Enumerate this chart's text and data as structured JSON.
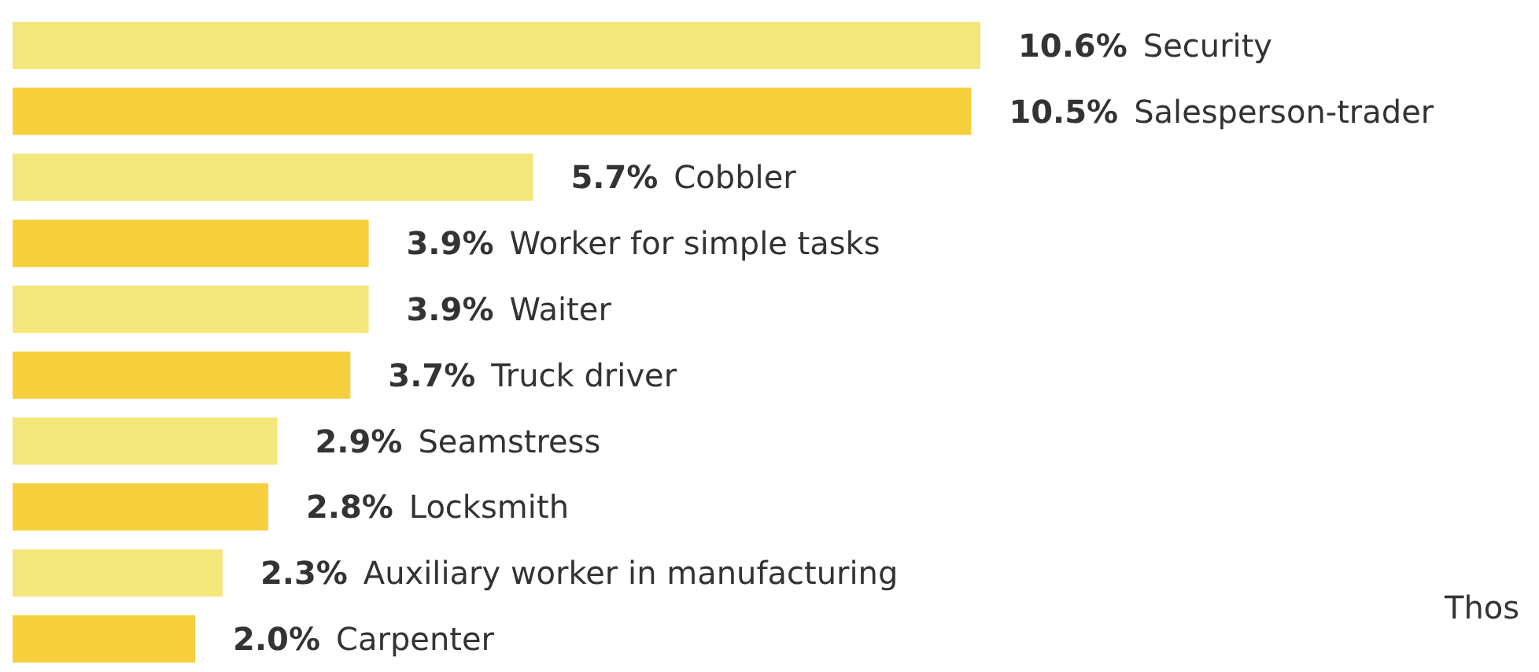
{
  "chart_data": {
    "type": "bar",
    "orientation": "horizontal",
    "categories": [
      "Security",
      "Salesperson-trader",
      "Cobbler",
      "Worker for simple tasks",
      "Waiter",
      "Truck driver",
      "Seamstress",
      "Locksmith",
      "Auxiliary worker in manufacturing",
      "Carpenter"
    ],
    "values": [
      10.6,
      10.5,
      5.7,
      3.9,
      3.9,
      3.7,
      2.9,
      2.8,
      2.3,
      2.0
    ],
    "value_labels": [
      "10.6%",
      "10.5%",
      "5.7%",
      "3.9%",
      "3.9%",
      "3.7%",
      "2.9%",
      "2.8%",
      "2.3%",
      "2.0%"
    ],
    "colors": [
      "#f3e67a",
      "#f6cf3c",
      "#f3e67a",
      "#f6cf3c",
      "#f3e67a",
      "#f6cf3c",
      "#f3e67a",
      "#f6cf3c",
      "#f3e67a",
      "#f6cf3c"
    ],
    "annotations": [
      "Thos"
    ]
  }
}
